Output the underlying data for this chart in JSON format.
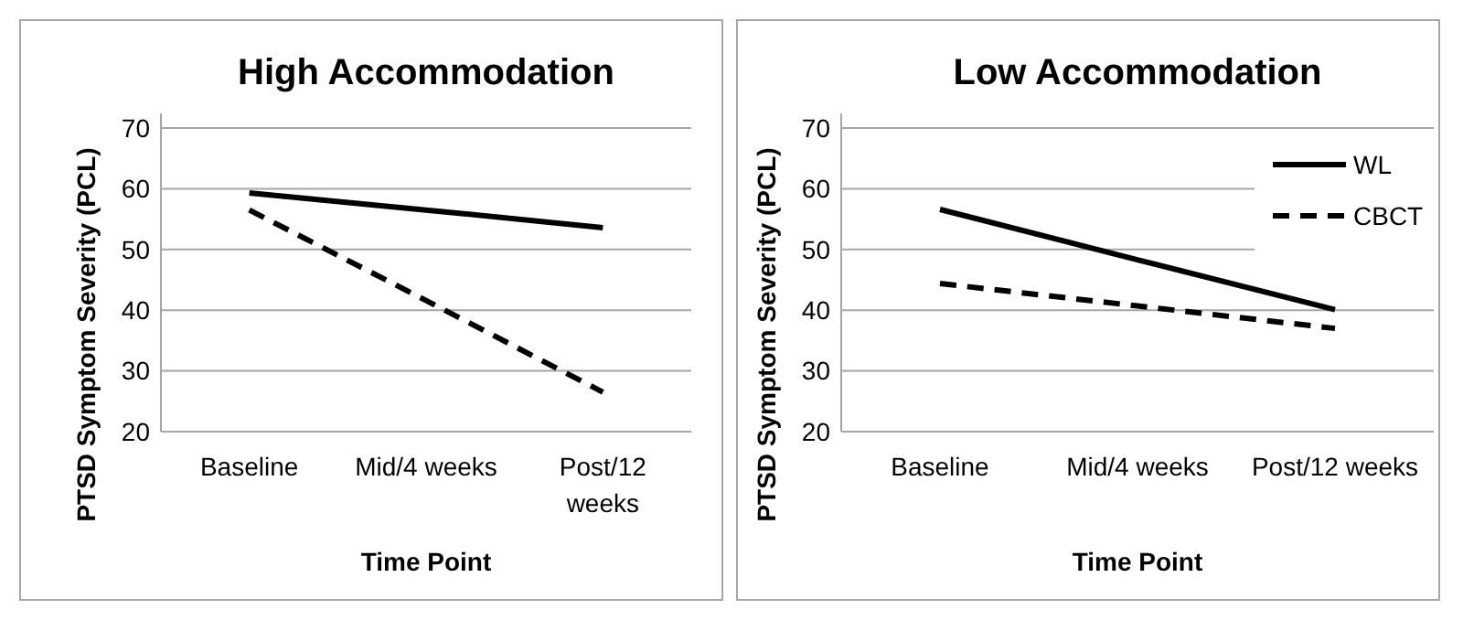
{
  "chart_data": [
    {
      "type": "line",
      "title": "High Accommodation",
      "xlabel": "Time Point",
      "ylabel": "PTSD Symptom Severity (PCL)",
      "categories": [
        "Baseline",
        "Mid/4 weeks",
        "Post/12 weeks"
      ],
      "ylim": [
        20,
        70
      ],
      "yticks": [
        20,
        30,
        40,
        50,
        60,
        70
      ],
      "grid": "y",
      "legend": false,
      "marker": "none",
      "series": [
        {
          "color": "#000000",
          "line_style": "solid",
          "values": [
            59.3,
            56.5,
            53.6
          ]
        },
        {
          "color": "#000000",
          "line_style": "dashed",
          "values": [
            56.5,
            41.6,
            26.5
          ]
        }
      ]
    },
    {
      "type": "line",
      "title": "Low Accommodation",
      "xlabel": "Time Point",
      "ylabel": "PTSD Symptom Severity (PCL)",
      "categories": [
        "Baseline",
        "Mid/4 weeks",
        "Post/12 weeks"
      ],
      "ylim": [
        20,
        70
      ],
      "yticks": [
        20,
        30,
        40,
        50,
        60,
        70
      ],
      "grid": "y",
      "legend": "top right",
      "marker": "none",
      "series": [
        {
          "name": "WL",
          "color": "#000000",
          "line_style": "solid",
          "values": [
            56.6,
            48.3,
            40.1
          ]
        },
        {
          "name": "CBCT",
          "color": "#000000",
          "line_style": "dashed",
          "values": [
            44.4,
            40.7,
            37.0
          ]
        }
      ]
    }
  ]
}
